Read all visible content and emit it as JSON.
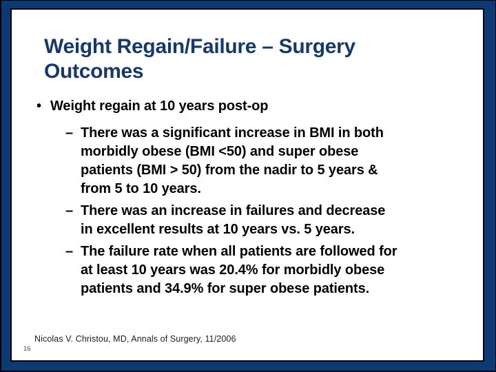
{
  "slide": {
    "title": "Weight Regain/Failure – Surgery\nOutcomes",
    "bullets": [
      {
        "level": 1,
        "marker": "•",
        "text": "Weight regain at 10 years post-op"
      },
      {
        "level": 2,
        "marker": "–",
        "text": "There was a significant increase in BMI in both\nmorbidly obese (BMI <50) and super obese\npatients (BMI > 50) from the nadir to 5 years &\nfrom 5 to 10 years."
      },
      {
        "level": 2,
        "marker": "–",
        "text": "There was an increase in failures and decrease\nin excellent results at 10 years vs. 5 years."
      },
      {
        "level": 2,
        "marker": "–",
        "text": "The failure rate when all patients are followed for\nat least 10 years was 20.4% for morbidly obese\npatients and 34.9% for super obese patients."
      }
    ],
    "citation": "Nicolas V. Christou, MD, Annals of Surgery, 11/2006",
    "page_number": "16"
  },
  "colors": {
    "navy-bg": "#0c3a74",
    "title-navy": "#16396b",
    "body-black": "#000000",
    "citation-gray": "#1c1c1c",
    "pagenum-navy": "#2e4d77",
    "panel-white": "#ffffff",
    "frame-black": "#000205"
  }
}
